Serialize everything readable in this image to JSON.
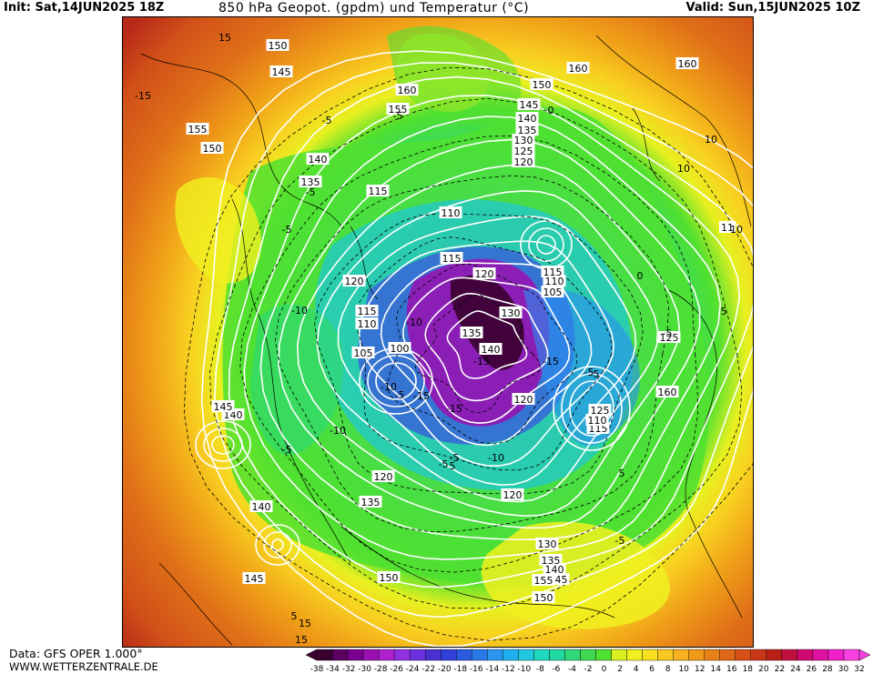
{
  "header": {
    "init": "Init: Sat,14JUN2025 18Z",
    "title": "850 hPa Geopot. (gpdm) und Temperatur (°C)",
    "valid": "Valid: Sun,15JUN2025 10Z"
  },
  "footer": {
    "data_source": "Data: GFS OPER 1.000°",
    "website": "WWW.WETTERZENTRALE.DE"
  },
  "colorbar": {
    "ticks": [
      "-38",
      "-34",
      "-32",
      "-30",
      "-28",
      "-26",
      "-24",
      "-22",
      "-20",
      "-18",
      "-16",
      "-14",
      "-12",
      "-10",
      "-8",
      "-6",
      "-4",
      "-2",
      "0",
      "2",
      "4",
      "6",
      "8",
      "10",
      "12",
      "14",
      "16",
      "18",
      "20",
      "22",
      "24",
      "26",
      "28",
      "30",
      "32"
    ],
    "colors": [
      "#3a0030",
      "#5a0060",
      "#7a0090",
      "#9a10b0",
      "#b020d0",
      "#9030e0",
      "#6a30e0",
      "#4a30d0",
      "#3040d8",
      "#2a5ae0",
      "#2a78e8",
      "#2a96f0",
      "#20b0f0",
      "#20c8e0",
      "#20d8c0",
      "#20d8a0",
      "#30d878",
      "#40d850",
      "#50e030",
      "#d8f020",
      "#f0f020",
      "#f8e020",
      "#f8c820",
      "#f8b020",
      "#f09818",
      "#e88018",
      "#e06818",
      "#d85018",
      "#c83818",
      "#b82018",
      "#c01040",
      "#d00870",
      "#e010a0",
      "#f020c8",
      "#f840e0"
    ]
  },
  "isohypse_labels": [
    "150",
    "145",
    "155",
    "150",
    "160",
    "155",
    "150",
    "145",
    "140",
    "135",
    "130",
    "125",
    "120",
    "115",
    "110",
    "140",
    "135",
    "115",
    "120",
    "110",
    "115",
    "120",
    "105",
    "110",
    "115",
    "100",
    "105",
    "130",
    "135",
    "140",
    "120",
    "125",
    "115",
    "110",
    "120",
    "120",
    "135",
    "145",
    "140",
    "140",
    "145",
    "150",
    "150",
    "145",
    "140",
    "135",
    "130",
    "125",
    "160",
    "155",
    "160",
    "160",
    "11"
  ],
  "isotherm_labels": [
    "15",
    "-15",
    "-5",
    "-5",
    "0",
    "-5",
    "-5",
    "-10",
    "-10",
    "-15",
    "-10",
    "-5",
    "-15",
    "-10",
    "-5",
    "-10",
    "-5",
    "0",
    "-5",
    "-5",
    "5",
    "10",
    "-15",
    "-5",
    "5",
    "-5",
    "5",
    "15",
    "10",
    "10",
    "15",
    "-5",
    "5",
    "-15"
  ]
}
